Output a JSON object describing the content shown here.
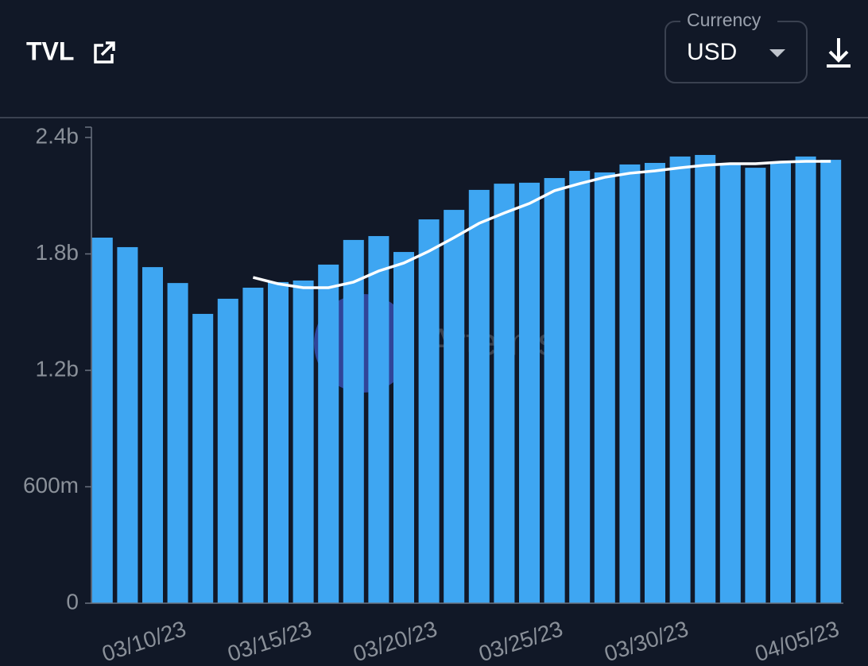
{
  "header": {
    "title": "TVL",
    "currency_label": "Currency",
    "currency_value": "USD"
  },
  "chart_data": {
    "type": "bar",
    "watermark": "Artemis",
    "categories": [
      null,
      null,
      null,
      "03/10/23",
      null,
      null,
      null,
      null,
      "03/15/23",
      null,
      null,
      null,
      null,
      "03/20/23",
      null,
      null,
      null,
      null,
      "03/25/23",
      null,
      null,
      null,
      null,
      "03/30/23",
      null,
      null,
      null,
      null,
      null,
      "04/05/23"
    ],
    "series": [
      {
        "color": "#3ea6f2",
        "values": [
          1884000000,
          1835000000,
          1732000000,
          1650000000,
          1491000000,
          1569000000,
          1626000000,
          1655000000,
          1663000000,
          1745000000,
          1872000000,
          1892000000,
          1810000000,
          1978000000,
          2027000000,
          2130000000,
          2162000000,
          2167000000,
          2191000000,
          2228000000,
          2220000000,
          2261000000,
          2269000000,
          2302000000,
          2310000000,
          2261000000,
          2244000000,
          2269000000,
          2302000000,
          2285000000
        ]
      },
      {
        "type": "line",
        "color": "#ffffff",
        "values": [
          null,
          null,
          null,
          null,
          null,
          null,
          1679000000,
          1646000000,
          1626000000,
          1626000000,
          1655000000,
          1712000000,
          1753000000,
          1814000000,
          1884000000,
          1958000000,
          2011000000,
          2060000000,
          2126000000,
          2162000000,
          2195000000,
          2216000000,
          2228000000,
          2244000000,
          2257000000,
          2265000000,
          2265000000,
          2273000000,
          2277000000,
          2277000000
        ]
      }
    ],
    "ylim": [
      0,
      2400000000
    ],
    "yticks": [
      0,
      {
        "value": 600000000,
        "label": "600m"
      },
      {
        "value": 1200000000,
        "label": "1.2b"
      },
      {
        "value": 1800000000,
        "label": "1.8b"
      },
      {
        "value": 2400000000,
        "label": "2.4b"
      }
    ]
  }
}
